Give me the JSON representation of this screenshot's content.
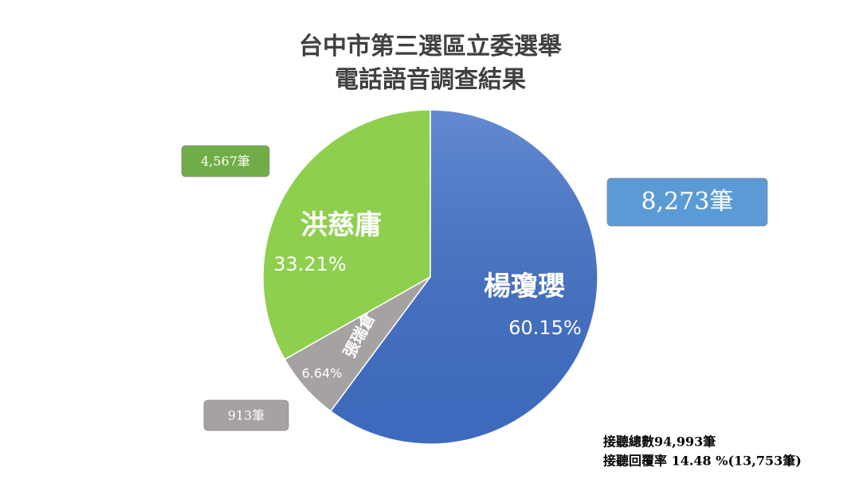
{
  "chart_data": {
    "type": "pie",
    "title": "台中市第三選區立委選舉",
    "subtitle": "電話語音調查結果",
    "categories": [
      "楊瓊瓔",
      "張瑞倉",
      "洪慈庸"
    ],
    "values": [
      60.15,
      6.64,
      33.21
    ],
    "value_labels": [
      "60.15%",
      "6.64%",
      "33.21%"
    ],
    "colors": [
      "#4170c8",
      "#a6a2a2",
      "#8fcf4e"
    ],
    "annotations": [
      "8,273筆",
      "913筆",
      "4,567筆"
    ],
    "notes": [
      "接聽總數94,993筆",
      "接聽回覆率 14.48 %(13,753筆)"
    ]
  }
}
